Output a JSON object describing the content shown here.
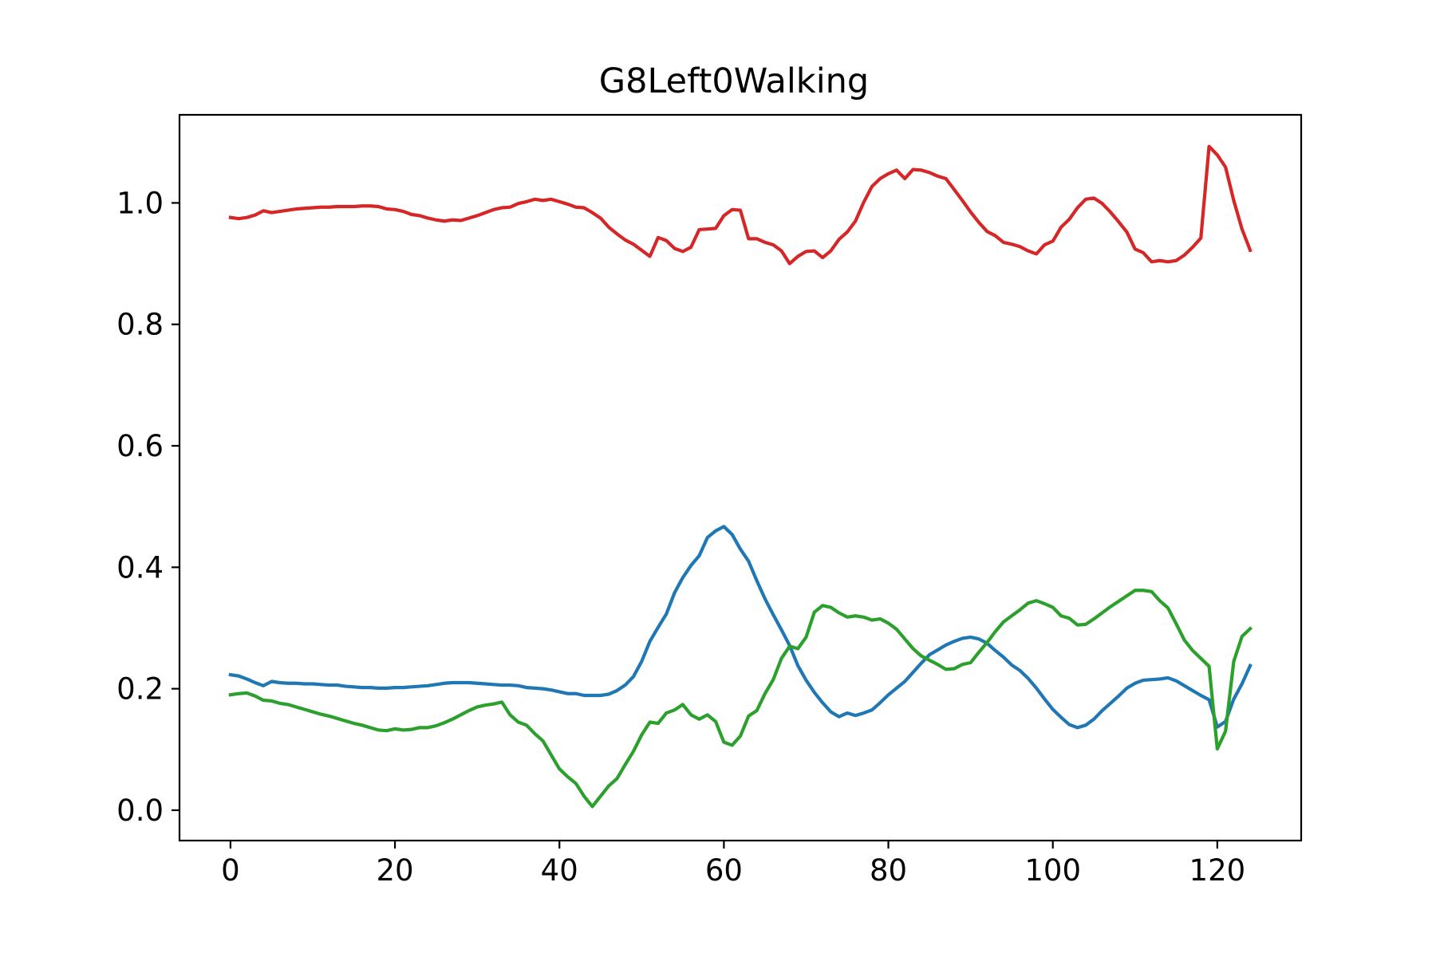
{
  "chart_data": {
    "type": "line",
    "title": "G8Left0Walking",
    "xlabel": "",
    "ylabel": "",
    "xlim": [
      -6.2,
      130.2
    ],
    "ylim": [
      -0.05,
      1.145
    ],
    "xticks": [
      0,
      20,
      40,
      60,
      80,
      100,
      120
    ],
    "xtick_labels": [
      "0",
      "20",
      "40",
      "60",
      "80",
      "100",
      "120"
    ],
    "yticks": [
      0.0,
      0.2,
      0.4,
      0.6,
      0.8,
      1.0
    ],
    "ytick_labels": [
      "0.0",
      "0.2",
      "0.4",
      "0.6",
      "0.8",
      "1.0"
    ],
    "grid": false,
    "legend": "none",
    "x": [
      0,
      1,
      2,
      3,
      4,
      5,
      6,
      7,
      8,
      9,
      10,
      11,
      12,
      13,
      14,
      15,
      16,
      17,
      18,
      19,
      20,
      21,
      22,
      23,
      24,
      25,
      26,
      27,
      28,
      29,
      30,
      31,
      32,
      33,
      34,
      35,
      36,
      37,
      38,
      39,
      40,
      41,
      42,
      43,
      44,
      45,
      46,
      47,
      48,
      49,
      50,
      51,
      52,
      53,
      54,
      55,
      56,
      57,
      58,
      59,
      60,
      61,
      62,
      63,
      64,
      65,
      66,
      67,
      68,
      69,
      70,
      71,
      72,
      73,
      74,
      75,
      76,
      77,
      78,
      79,
      80,
      81,
      82,
      83,
      84,
      85,
      86,
      87,
      88,
      89,
      90,
      91,
      92,
      93,
      94,
      95,
      96,
      97,
      98,
      99,
      100,
      101,
      102,
      103,
      104,
      105,
      106,
      107,
      108,
      109,
      110,
      111,
      112,
      113,
      114,
      115,
      116,
      117,
      118,
      119,
      120,
      121,
      122,
      123,
      124
    ],
    "series": [
      {
        "color": "#d62728",
        "values": [
          0.976,
          0.974,
          0.976,
          0.98,
          0.987,
          0.984,
          0.986,
          0.988,
          0.99,
          0.991,
          0.992,
          0.993,
          0.993,
          0.994,
          0.994,
          0.994,
          0.995,
          0.995,
          0.994,
          0.99,
          0.989,
          0.986,
          0.981,
          0.979,
          0.975,
          0.972,
          0.97,
          0.972,
          0.971,
          0.975,
          0.979,
          0.984,
          0.989,
          0.992,
          0.993,
          0.999,
          1.002,
          1.006,
          1.004,
          1.006,
          1.002,
          0.998,
          0.993,
          0.992,
          0.984,
          0.975,
          0.96,
          0.949,
          0.939,
          0.932,
          0.922,
          0.912,
          0.943,
          0.938,
          0.925,
          0.92,
          0.927,
          0.956,
          0.957,
          0.958,
          0.979,
          0.989,
          0.988,
          0.941,
          0.941,
          0.935,
          0.931,
          0.921,
          0.9,
          0.912,
          0.92,
          0.921,
          0.91,
          0.921,
          0.94,
          0.952,
          0.97,
          1.001,
          1.027,
          1.04,
          1.048,
          1.054,
          1.04,
          1.055,
          1.054,
          1.05,
          1.044,
          1.04,
          1.022,
          1.004,
          0.985,
          0.968,
          0.953,
          0.946,
          0.935,
          0.932,
          0.928,
          0.921,
          0.916,
          0.931,
          0.937,
          0.96,
          0.973,
          0.992,
          1.006,
          1.008,
          0.999,
          0.985,
          0.969,
          0.952,
          0.924,
          0.918,
          0.903,
          0.905,
          0.903,
          0.905,
          0.914,
          0.927,
          0.942,
          1.093,
          1.079,
          1.059,
          1.004,
          0.957,
          0.922
        ]
      },
      {
        "color": "#1f77b4",
        "values": [
          0.223,
          0.221,
          0.216,
          0.21,
          0.205,
          0.212,
          0.21,
          0.209,
          0.209,
          0.208,
          0.208,
          0.207,
          0.206,
          0.206,
          0.204,
          0.203,
          0.202,
          0.202,
          0.201,
          0.201,
          0.202,
          0.202,
          0.203,
          0.204,
          0.205,
          0.207,
          0.209,
          0.21,
          0.21,
          0.21,
          0.209,
          0.208,
          0.207,
          0.206,
          0.206,
          0.205,
          0.202,
          0.201,
          0.2,
          0.198,
          0.195,
          0.192,
          0.192,
          0.189,
          0.189,
          0.189,
          0.191,
          0.197,
          0.206,
          0.22,
          0.245,
          0.278,
          0.301,
          0.323,
          0.358,
          0.383,
          0.403,
          0.419,
          0.449,
          0.46,
          0.467,
          0.454,
          0.43,
          0.41,
          0.378,
          0.348,
          0.322,
          0.297,
          0.271,
          0.238,
          0.214,
          0.194,
          0.177,
          0.162,
          0.154,
          0.16,
          0.156,
          0.16,
          0.165,
          0.177,
          0.19,
          0.201,
          0.212,
          0.227,
          0.242,
          0.256,
          0.264,
          0.272,
          0.278,
          0.283,
          0.285,
          0.282,
          0.275,
          0.263,
          0.252,
          0.239,
          0.23,
          0.217,
          0.201,
          0.183,
          0.166,
          0.153,
          0.141,
          0.136,
          0.14,
          0.15,
          0.164,
          0.176,
          0.188,
          0.201,
          0.209,
          0.214,
          0.215,
          0.216,
          0.218,
          0.213,
          0.205,
          0.197,
          0.189,
          0.182,
          0.137,
          0.146,
          0.183,
          0.208,
          0.238
        ]
      },
      {
        "color": "#2ca02c",
        "values": [
          0.19,
          0.192,
          0.193,
          0.188,
          0.181,
          0.18,
          0.176,
          0.174,
          0.17,
          0.166,
          0.162,
          0.158,
          0.155,
          0.151,
          0.147,
          0.143,
          0.14,
          0.136,
          0.132,
          0.131,
          0.134,
          0.132,
          0.133,
          0.136,
          0.136,
          0.139,
          0.144,
          0.15,
          0.157,
          0.164,
          0.17,
          0.173,
          0.175,
          0.178,
          0.157,
          0.145,
          0.14,
          0.126,
          0.114,
          0.091,
          0.068,
          0.055,
          0.044,
          0.023,
          0.006,
          0.023,
          0.04,
          0.052,
          0.075,
          0.097,
          0.124,
          0.145,
          0.143,
          0.16,
          0.165,
          0.174,
          0.157,
          0.15,
          0.157,
          0.146,
          0.112,
          0.107,
          0.122,
          0.155,
          0.164,
          0.192,
          0.215,
          0.25,
          0.27,
          0.266,
          0.285,
          0.326,
          0.337,
          0.334,
          0.325,
          0.318,
          0.32,
          0.318,
          0.313,
          0.315,
          0.308,
          0.298,
          0.282,
          0.266,
          0.254,
          0.247,
          0.24,
          0.232,
          0.233,
          0.24,
          0.243,
          0.26,
          0.276,
          0.294,
          0.31,
          0.32,
          0.33,
          0.341,
          0.345,
          0.34,
          0.334,
          0.32,
          0.316,
          0.305,
          0.306,
          0.315,
          0.325,
          0.335,
          0.344,
          0.353,
          0.362,
          0.362,
          0.36,
          0.345,
          0.333,
          0.307,
          0.28,
          0.263,
          0.25,
          0.237,
          0.101,
          0.13,
          0.245,
          0.286,
          0.299
        ]
      }
    ]
  }
}
